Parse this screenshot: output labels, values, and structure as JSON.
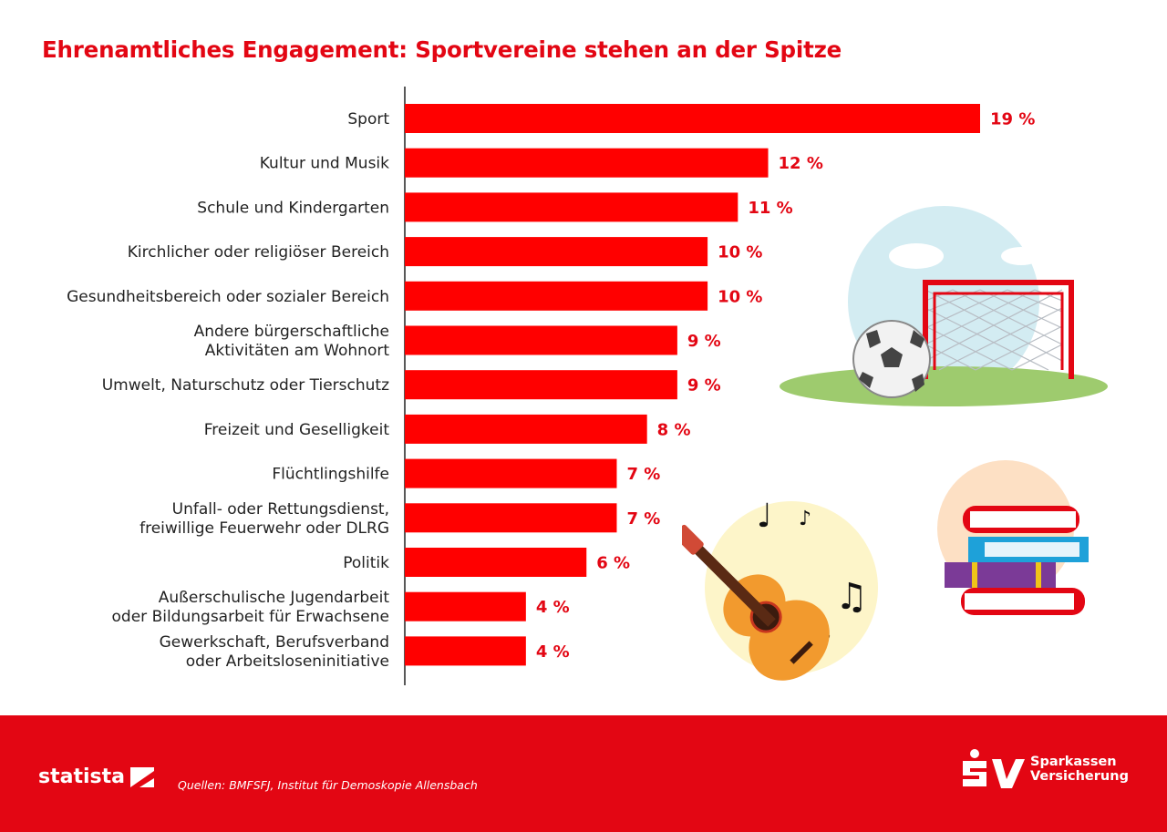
{
  "title": "Ehrenamtliches Engagement: Sportvereine stehen an der Spitze",
  "chart_data": {
    "type": "bar",
    "orientation": "horizontal",
    "categories": [
      [
        "Sport"
      ],
      [
        "Kultur und Musik"
      ],
      [
        "Schule und Kindergarten"
      ],
      [
        "Kirchlicher oder religiöser Bereich"
      ],
      [
        "Gesundheitsbereich oder sozialer Bereich"
      ],
      [
        "Andere bürgerschaftliche",
        "Aktivitäten am Wohnort"
      ],
      [
        "Umwelt, Naturschutz oder Tierschutz"
      ],
      [
        "Freizeit und Geselligkeit"
      ],
      [
        "Flüchtlingshilfe"
      ],
      [
        "Unfall- oder Rettungsdienst,",
        "freiwillige Feuerwehr oder DLRG"
      ],
      [
        "Politik"
      ],
      [
        "Außerschulische Jugendarbeit",
        "oder Bildungsarbeit für Erwachsene"
      ],
      [
        "Gewerkschaft, Berufsverband",
        "oder Arbeitsloseninitiative"
      ]
    ],
    "values": [
      19,
      12,
      11,
      10,
      10,
      9,
      9,
      8,
      7,
      7,
      6,
      4,
      4
    ],
    "value_labels": [
      "19 %",
      "12 %",
      "11 %",
      "10 %",
      "10 %",
      "9 %",
      "9 %",
      "8 %",
      "7 %",
      "7 %",
      "6 %",
      "4 %",
      "4 %"
    ],
    "unit": "%",
    "xlim": [
      0,
      19
    ],
    "bar_color": "#ff0000",
    "label_color": "#e30613",
    "grid": false,
    "legend": "none"
  },
  "footer": {
    "brand": "statista",
    "source": "Quellen: BMFSFJ, Institut für Demoskopie Allensbach",
    "partner_line1": "Sparkassen",
    "partner_line2": "Versicherung",
    "background_color": "#e30613"
  },
  "illustrations": [
    "football-goal-icon",
    "guitar-icon",
    "books-icon"
  ]
}
